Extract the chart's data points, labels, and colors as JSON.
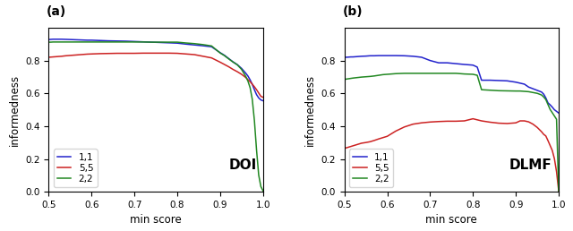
{
  "panel_a_label": "(a)",
  "panel_b_label": "(b)",
  "xlabel": "min score",
  "ylabel": "informedness",
  "label_11": "1,1",
  "label_55": "5,5",
  "label_22": "2,2",
  "color_11": "#2222cc",
  "color_55": "#cc2222",
  "color_22": "#228822",
  "doi_label": "DOI",
  "dlmf_label": "DLMF",
  "xlim": [
    0.5,
    1.0
  ],
  "ylim": [
    0.0,
    1.0
  ],
  "xticks": [
    0.5,
    0.6,
    0.7,
    0.8,
    0.9,
    1.0
  ],
  "yticks": [
    0.0,
    0.2,
    0.4,
    0.6,
    0.8
  ],
  "doi_11_x": [
    0.5,
    0.505,
    0.51,
    0.515,
    0.52,
    0.53,
    0.54,
    0.55,
    0.56,
    0.57,
    0.58,
    0.59,
    0.6,
    0.62,
    0.64,
    0.66,
    0.68,
    0.7,
    0.72,
    0.74,
    0.76,
    0.78,
    0.8,
    0.82,
    0.84,
    0.86,
    0.88,
    0.9,
    0.91,
    0.92,
    0.93,
    0.94,
    0.95,
    0.96,
    0.965,
    0.97,
    0.975,
    0.98,
    0.985,
    0.99,
    0.995,
    1.0
  ],
  "doi_11_y": [
    0.928,
    0.929,
    0.93,
    0.93,
    0.93,
    0.93,
    0.929,
    0.928,
    0.927,
    0.926,
    0.925,
    0.924,
    0.924,
    0.922,
    0.92,
    0.919,
    0.918,
    0.916,
    0.914,
    0.912,
    0.91,
    0.908,
    0.906,
    0.9,
    0.895,
    0.89,
    0.884,
    0.848,
    0.832,
    0.812,
    0.792,
    0.775,
    0.752,
    0.722,
    0.705,
    0.682,
    0.655,
    0.622,
    0.592,
    0.572,
    0.56,
    0.555
  ],
  "doi_55_x": [
    0.5,
    0.505,
    0.51,
    0.515,
    0.52,
    0.53,
    0.54,
    0.55,
    0.56,
    0.57,
    0.58,
    0.59,
    0.6,
    0.62,
    0.64,
    0.66,
    0.68,
    0.7,
    0.72,
    0.74,
    0.76,
    0.78,
    0.8,
    0.82,
    0.84,
    0.86,
    0.88,
    0.9,
    0.91,
    0.92,
    0.93,
    0.94,
    0.95,
    0.96,
    0.965,
    0.97,
    0.975,
    0.98,
    0.985,
    0.99,
    0.995,
    1.0
  ],
  "doi_55_y": [
    0.82,
    0.821,
    0.822,
    0.823,
    0.824,
    0.826,
    0.829,
    0.831,
    0.833,
    0.835,
    0.837,
    0.839,
    0.84,
    0.842,
    0.843,
    0.844,
    0.844,
    0.844,
    0.845,
    0.845,
    0.845,
    0.845,
    0.844,
    0.84,
    0.836,
    0.826,
    0.816,
    0.79,
    0.776,
    0.762,
    0.746,
    0.732,
    0.716,
    0.696,
    0.683,
    0.671,
    0.656,
    0.64,
    0.622,
    0.602,
    0.582,
    0.576
  ],
  "doi_22_x": [
    0.5,
    0.505,
    0.51,
    0.515,
    0.52,
    0.53,
    0.54,
    0.55,
    0.56,
    0.57,
    0.58,
    0.59,
    0.6,
    0.62,
    0.64,
    0.66,
    0.68,
    0.7,
    0.72,
    0.74,
    0.76,
    0.78,
    0.8,
    0.82,
    0.84,
    0.86,
    0.88,
    0.9,
    0.91,
    0.92,
    0.93,
    0.94,
    0.95,
    0.96,
    0.965,
    0.97,
    0.975,
    0.98,
    0.985,
    0.99,
    0.995,
    1.0
  ],
  "doi_22_y": [
    0.912,
    0.912,
    0.913,
    0.913,
    0.913,
    0.913,
    0.913,
    0.913,
    0.913,
    0.913,
    0.913,
    0.913,
    0.913,
    0.913,
    0.913,
    0.913,
    0.913,
    0.913,
    0.913,
    0.912,
    0.912,
    0.912,
    0.912,
    0.907,
    0.903,
    0.897,
    0.889,
    0.846,
    0.83,
    0.81,
    0.791,
    0.774,
    0.746,
    0.702,
    0.674,
    0.634,
    0.564,
    0.434,
    0.254,
    0.102,
    0.032,
    0.006
  ],
  "dlmf_11_x": [
    0.5,
    0.505,
    0.51,
    0.515,
    0.52,
    0.53,
    0.54,
    0.55,
    0.56,
    0.57,
    0.58,
    0.59,
    0.6,
    0.62,
    0.64,
    0.66,
    0.68,
    0.7,
    0.72,
    0.74,
    0.76,
    0.78,
    0.8,
    0.81,
    0.82,
    0.84,
    0.86,
    0.88,
    0.9,
    0.91,
    0.92,
    0.93,
    0.94,
    0.95,
    0.96,
    0.965,
    0.97,
    0.975,
    0.98,
    0.985,
    0.99,
    0.995,
    1.0
  ],
  "dlmf_11_y": [
    0.82,
    0.82,
    0.821,
    0.822,
    0.822,
    0.824,
    0.826,
    0.827,
    0.829,
    0.829,
    0.83,
    0.83,
    0.83,
    0.83,
    0.829,
    0.826,
    0.82,
    0.8,
    0.786,
    0.786,
    0.781,
    0.776,
    0.772,
    0.76,
    0.68,
    0.68,
    0.678,
    0.676,
    0.668,
    0.662,
    0.656,
    0.638,
    0.628,
    0.618,
    0.608,
    0.595,
    0.572,
    0.542,
    0.53,
    0.516,
    0.5,
    0.49,
    0.48
  ],
  "dlmf_55_x": [
    0.5,
    0.505,
    0.51,
    0.515,
    0.52,
    0.53,
    0.54,
    0.55,
    0.56,
    0.57,
    0.58,
    0.59,
    0.6,
    0.62,
    0.64,
    0.66,
    0.68,
    0.7,
    0.72,
    0.74,
    0.76,
    0.78,
    0.8,
    0.82,
    0.84,
    0.86,
    0.88,
    0.9,
    0.91,
    0.92,
    0.93,
    0.94,
    0.95,
    0.96,
    0.965,
    0.97,
    0.975,
    0.98,
    0.985,
    0.99,
    0.995,
    1.0
  ],
  "dlmf_55_y": [
    0.265,
    0.268,
    0.272,
    0.276,
    0.28,
    0.288,
    0.296,
    0.3,
    0.305,
    0.313,
    0.322,
    0.33,
    0.338,
    0.37,
    0.395,
    0.412,
    0.42,
    0.425,
    0.428,
    0.43,
    0.43,
    0.432,
    0.445,
    0.432,
    0.424,
    0.418,
    0.416,
    0.42,
    0.432,
    0.432,
    0.426,
    0.412,
    0.392,
    0.366,
    0.35,
    0.34,
    0.312,
    0.282,
    0.252,
    0.202,
    0.122,
    0.006
  ],
  "dlmf_22_x": [
    0.5,
    0.505,
    0.51,
    0.515,
    0.52,
    0.53,
    0.54,
    0.55,
    0.56,
    0.57,
    0.58,
    0.59,
    0.6,
    0.62,
    0.64,
    0.66,
    0.68,
    0.7,
    0.72,
    0.74,
    0.76,
    0.78,
    0.8,
    0.81,
    0.82,
    0.84,
    0.86,
    0.88,
    0.9,
    0.91,
    0.92,
    0.93,
    0.94,
    0.95,
    0.96,
    0.965,
    0.97,
    0.975,
    0.98,
    0.985,
    0.99,
    0.995,
    1.0
  ],
  "dlmf_22_y": [
    0.685,
    0.687,
    0.689,
    0.691,
    0.693,
    0.696,
    0.699,
    0.701,
    0.703,
    0.706,
    0.71,
    0.714,
    0.716,
    0.72,
    0.722,
    0.722,
    0.722,
    0.722,
    0.722,
    0.722,
    0.722,
    0.718,
    0.716,
    0.71,
    0.622,
    0.619,
    0.616,
    0.615,
    0.614,
    0.614,
    0.612,
    0.61,
    0.605,
    0.6,
    0.59,
    0.578,
    0.562,
    0.532,
    0.502,
    0.482,
    0.462,
    0.442,
    0.006
  ],
  "legend_fontsize": 7.5,
  "tick_fontsize": 7.5,
  "label_fontsize": 8.5,
  "annot_fontsize": 11,
  "linewidth": 1.1
}
